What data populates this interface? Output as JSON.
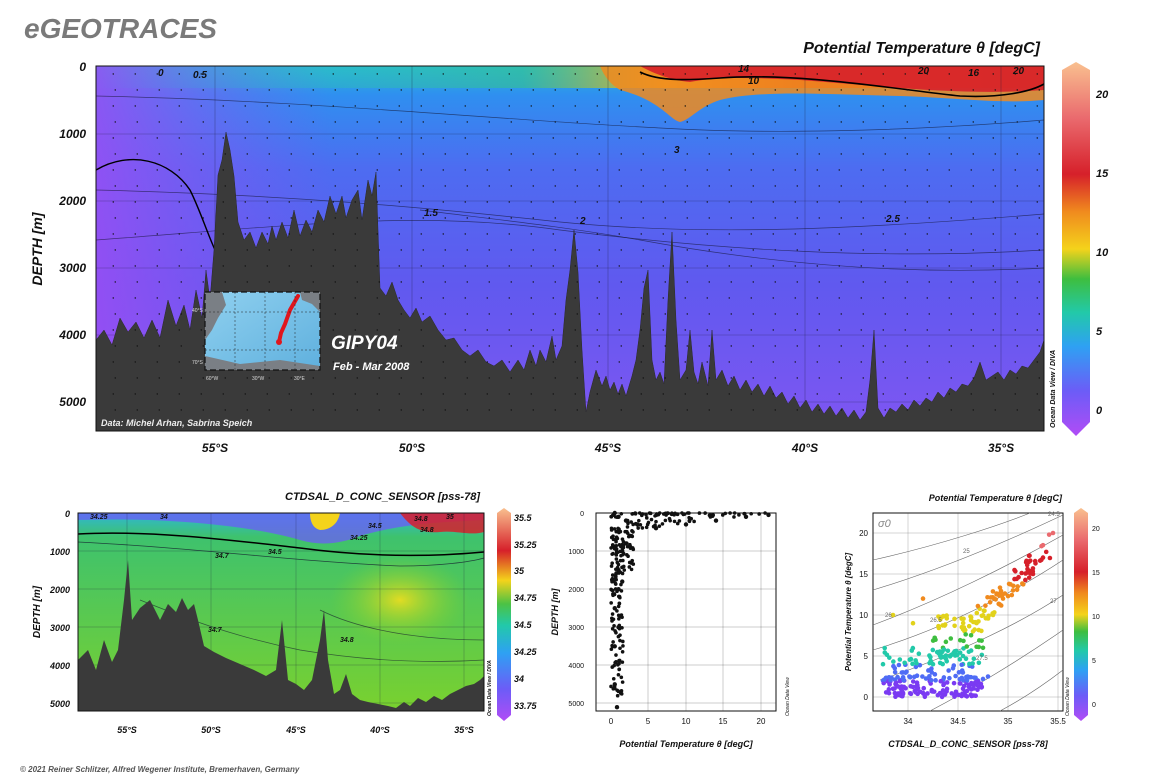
{
  "brand": "eGEOTRACES",
  "copyright": "© 2021 Reiner Schlitzer, Alfred Wegener Institute, Bremerhaven, Germany",
  "section": {
    "title": "Potential Temperature θ [degC]",
    "ylabel": "DEPTH [m]",
    "y_ticks": [
      "0",
      "1000",
      "2000",
      "3000",
      "4000",
      "5000"
    ],
    "x_ticks": [
      "55°S",
      "50°S",
      "45°S",
      "40°S",
      "35°S"
    ],
    "colorbar_ticks": [
      "20",
      "15",
      "10",
      "5",
      "0"
    ],
    "colorbar_caption": "Ocean Data View / DIVA",
    "contour_labels": [
      "0",
      "0.5",
      "10",
      "14",
      "20",
      "16",
      "20",
      "3",
      "2",
      "1.5",
      "2.5"
    ],
    "cruise": "GIPY04",
    "dates": "Feb - Mar 2008",
    "credit": "Data: Michel Arhan, Sabrina Speich",
    "inset_lat_ticks": [
      "40°S",
      "70°S"
    ],
    "inset_lon_ticks": [
      "60°W",
      "30°W",
      "30°E"
    ]
  },
  "salinity_section": {
    "title": "CTDSAL_D_CONC_SENSOR [pss-78]",
    "ylabel": "DEPTH [m]",
    "y_ticks": [
      "0",
      "1000",
      "2000",
      "3000",
      "4000",
      "5000"
    ],
    "x_ticks": [
      "55°S",
      "50°S",
      "45°S",
      "40°S",
      "35°S"
    ],
    "colorbar_ticks": [
      "35.5",
      "35.25",
      "35",
      "34.75",
      "34.5",
      "34.25",
      "34",
      "33.75"
    ],
    "colorbar_caption": "Ocean Data View / DIVA",
    "contour_labels": [
      "34.25",
      "34",
      "34.5",
      "34.7",
      "34.8",
      "34.7",
      "34.8",
      "34.5",
      "34.25",
      "34.8",
      "35"
    ]
  },
  "profile": {
    "xlabel": "Potential Temperature θ [degC]",
    "ylabel": "DEPTH [m]",
    "x_ticks": [
      "0",
      "5",
      "10",
      "15",
      "20"
    ],
    "y_ticks": [
      "0",
      "1000",
      "2000",
      "3000",
      "4000",
      "5000"
    ],
    "side_caption": "Ocean Data View"
  },
  "ts_plot": {
    "title": "Potential Temperature θ [degC]",
    "xlabel": "CTDSAL_D_CONC_SENSOR [pss-78]",
    "ylabel": "Potential Temperature θ [degC]",
    "x_ticks": [
      "34",
      "34.5",
      "35",
      "35.5"
    ],
    "y_ticks": [
      "0",
      "5",
      "10",
      "15",
      "20"
    ],
    "sigma_label": "σ0",
    "sigma_labels": [
      "24.5",
      "25",
      "26",
      "26.5",
      "27",
      "27.5"
    ],
    "colorbar_ticks": [
      "20",
      "15",
      "10",
      "5",
      "0"
    ],
    "colorbar_caption": "Ocean Data View"
  },
  "chart_data": [
    {
      "type": "heatmap",
      "title": "Potential Temperature θ [degC]",
      "ylabel": "DEPTH [m]",
      "x": [
        "55°S",
        "50°S",
        "45°S",
        "40°S",
        "35°S"
      ],
      "xlim_deg_south": [
        57.5,
        34
      ],
      "ylim": [
        5400,
        0
      ],
      "color_range": [
        -0.5,
        22
      ],
      "colormap": "rainbow (purple-blue-cyan-green-yellow-red-peach)",
      "isolines": [
        0,
        0.5,
        1.5,
        2,
        2.5,
        3,
        10,
        14,
        16,
        20
      ],
      "bottom_depth_profile": {
        "lat_deg_south": [
          57.5,
          56,
          55,
          54.7,
          54,
          53,
          52,
          51,
          50,
          49,
          48,
          47,
          46,
          45.5,
          45,
          44,
          43,
          42,
          41,
          40,
          39,
          38,
          37,
          36,
          35,
          34.2
        ],
        "depth_m": [
          4000,
          3900,
          3300,
          1000,
          2500,
          2700,
          3100,
          1600,
          3700,
          3900,
          4200,
          4600,
          4900,
          2400,
          4800,
          3000,
          4500,
          4700,
          4800,
          5000,
          5200,
          4000,
          5100,
          4800,
          4600,
          4200
        ]
      }
    },
    {
      "type": "heatmap",
      "title": "CTDSAL_D_CONC_SENSOR [pss-78]",
      "ylabel": "DEPTH [m]",
      "x": [
        "55°S",
        "50°S",
        "45°S",
        "40°S",
        "35°S"
      ],
      "ylim": [
        5400,
        0
      ],
      "color_range": [
        33.75,
        35.5
      ],
      "isolines": [
        34,
        34.25,
        34.5,
        34.7,
        34.8,
        35
      ]
    },
    {
      "type": "scatter",
      "xlabel": "Potential Temperature θ [degC]",
      "ylabel": "DEPTH [m]",
      "xlim": [
        -1,
        23
      ],
      "ylim": [
        5300,
        0
      ],
      "series": [
        {
          "x": [
            0.5,
            1.0,
            2.0,
            3.5,
            6.0,
            10.0,
            14.0,
            18.0,
            21.0,
            0.5,
            1.0,
            1.5,
            2.0,
            2.5,
            0.5,
            1.0,
            1.5,
            0.5,
            1.0,
            0.5,
            0.8
          ],
          "y": [
            0,
            100,
            200,
            300,
            400,
            300,
            200,
            100,
            50,
            900,
            1500,
            1000,
            800,
            600,
            2500,
            2000,
            1800,
            3500,
            3000,
            4500,
            5100
          ]
        }
      ]
    },
    {
      "type": "scatter",
      "title": "Potential Temperature θ [degC]",
      "xlabel": "CTDSAL_D_CONC_SENSOR [pss-78]",
      "ylabel": "Potential Temperature θ [degC]",
      "xlim": [
        33.7,
        35.6
      ],
      "ylim": [
        -1.5,
        22.5
      ],
      "color_by": "Potential Temperature θ [degC]",
      "series": [
        {
          "x": [
            33.8,
            33.9,
            34.0,
            34.2,
            34.4,
            34.6,
            34.7,
            34.75,
            34.8,
            34.85,
            33.8,
            34.0,
            34.3,
            34.5,
            34.6,
            34.7,
            34.9,
            35.0,
            35.1,
            35.3,
            35.4,
            35.5,
            34.2,
            34.4,
            33.9,
            34.1,
            34.6,
            34.8
          ],
          "y": [
            2,
            1,
            0.5,
            0.5,
            0.8,
            1,
            1.5,
            2,
            2.2,
            2.5,
            4,
            3,
            4,
            3.5,
            5,
            8,
            10,
            12,
            13,
            15,
            17,
            20,
            12,
            6,
            10,
            9,
            4,
            6
          ]
        }
      ]
    }
  ]
}
